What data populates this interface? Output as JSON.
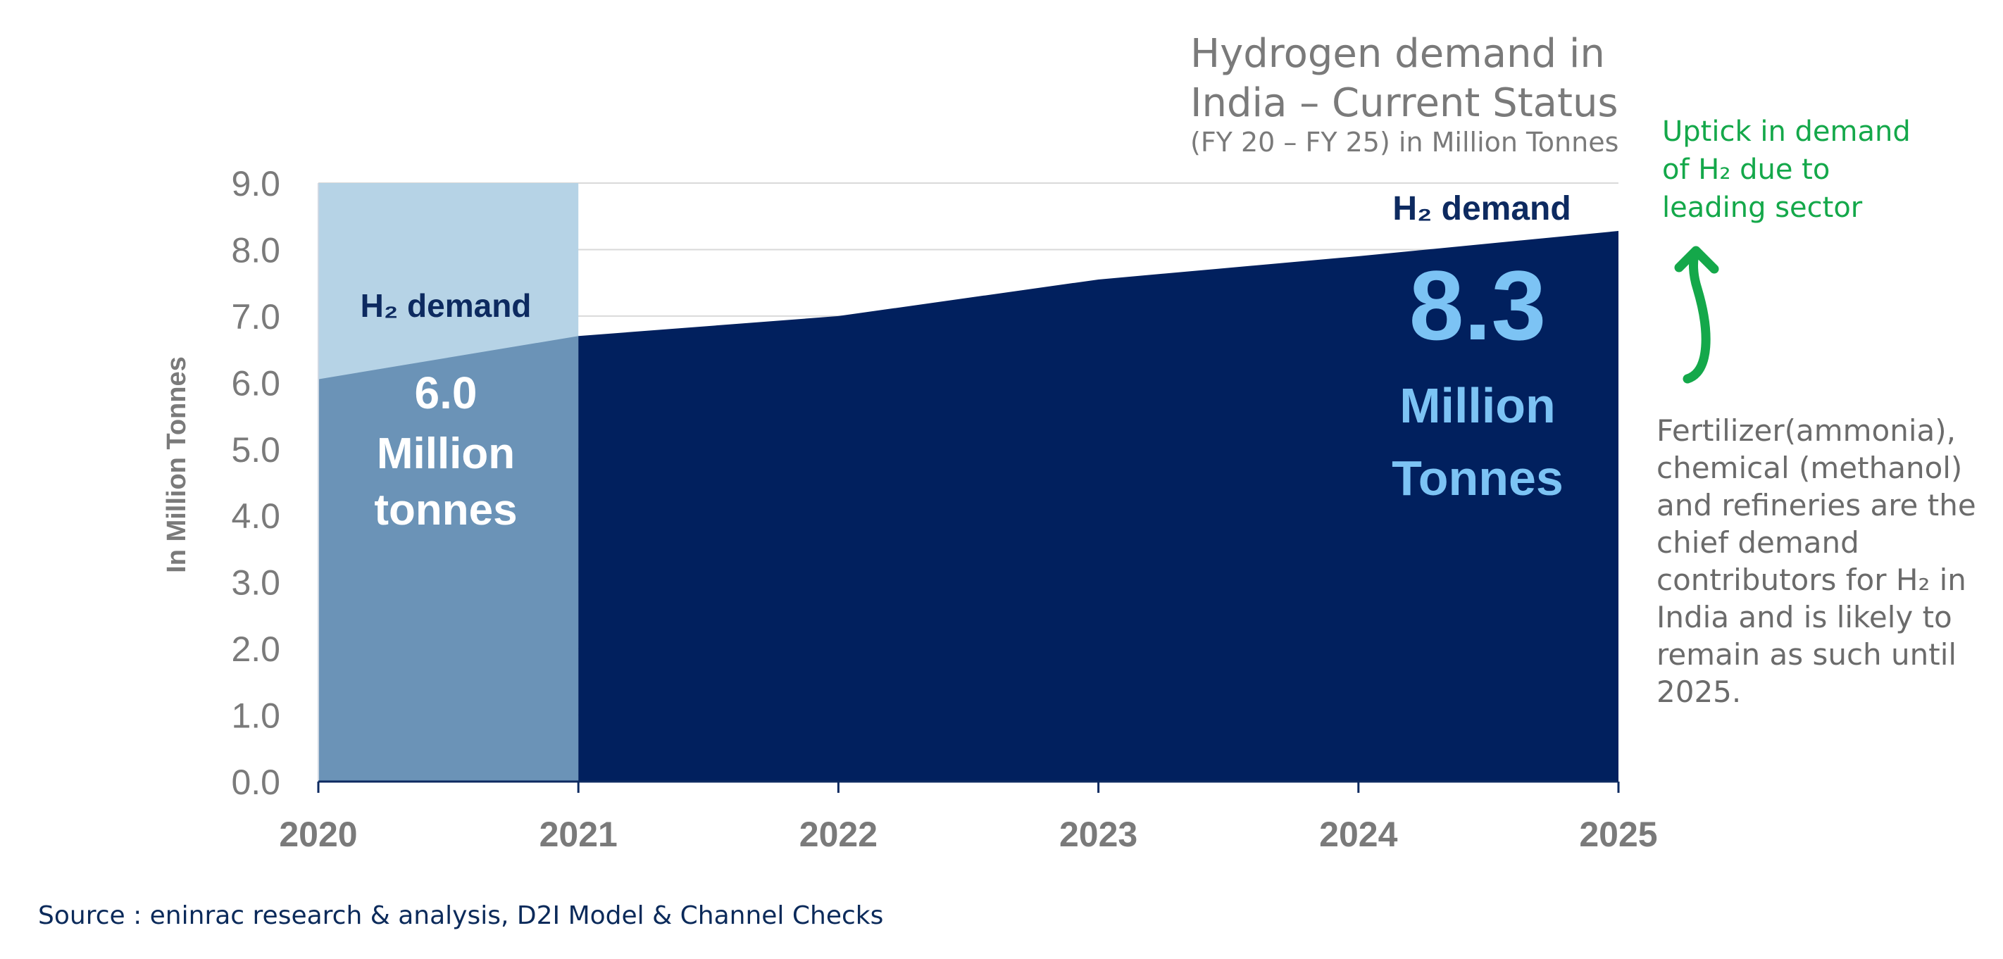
{
  "title": {
    "line1": "Hydrogen demand in",
    "line2": "India – Current Status",
    "subtitle": "(FY 20 – FY 25) in Million Tonnes"
  },
  "annotations": {
    "uptick": [
      "Uptick in demand",
      "of H₂ due to",
      "leading sector"
    ],
    "explanation": [
      "Fertilizer(ammonia),",
      "chemical (methanol)",
      "and refineries are the",
      "chief demand",
      "contributors for H₂ in",
      "India and is likely to",
      "remain as such until",
      "2025."
    ],
    "left_label": "H₂ demand",
    "left_value": "6.0",
    "left_unit_1": "Million",
    "left_unit_2": "tonnes",
    "right_label": "H₂ demand",
    "right_value": "8.3",
    "right_unit_1": "Million",
    "right_unit_2": "Tonnes"
  },
  "source": "Source : eninrac research & analysis, D2I Model & Channel Checks",
  "colors": {
    "area": "#01205e",
    "highlight_top": "#b6d3e6",
    "highlight_bottom": "#6b93b7",
    "value_blue": "#7cc3f4",
    "arrow": "#14a84a",
    "axis_text": "#7a7a7a"
  },
  "chart_data": {
    "type": "area",
    "x": [
      "2020",
      "2021",
      "2022",
      "2023",
      "2024",
      "2025"
    ],
    "series": [
      {
        "values": [
          6.05,
          6.7,
          7.0,
          7.55,
          7.9,
          8.28
        ]
      }
    ],
    "y_ticks": [
      "0.0",
      "1.0",
      "2.0",
      "3.0",
      "4.0",
      "5.0",
      "6.0",
      "7.0",
      "8.0",
      "9.0"
    ],
    "ylim": [
      0,
      9
    ],
    "xlabel": "",
    "ylabel": "In Million Tonnes",
    "grid": true
  }
}
